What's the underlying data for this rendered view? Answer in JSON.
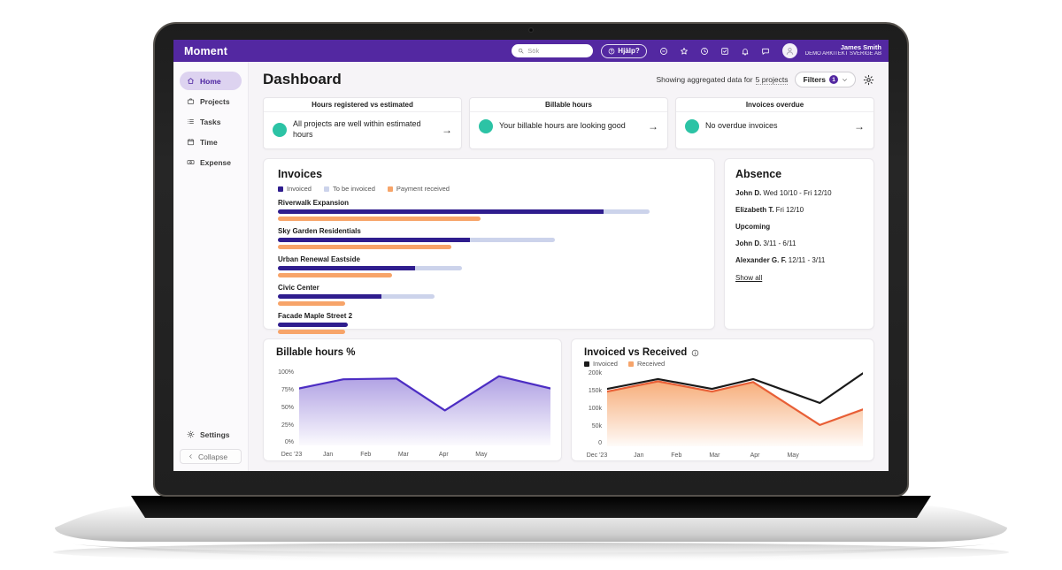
{
  "topbar": {
    "logo": "Moment",
    "search_placeholder": "Sök",
    "help_label": "Hjälp?",
    "icons": [
      "status-icon",
      "star-icon",
      "history-icon",
      "check-square-icon",
      "bell-icon",
      "chat-icon"
    ],
    "user": {
      "name": "James Smith",
      "org": "DEMO ARKITEKT SVERIGE AB"
    }
  },
  "sidebar": {
    "items": [
      {
        "label": "Home",
        "icon": "home-icon",
        "active": true
      },
      {
        "label": "Projects",
        "icon": "briefcase-icon",
        "active": false
      },
      {
        "label": "Tasks",
        "icon": "list-icon",
        "active": false
      },
      {
        "label": "Time",
        "icon": "calendar-icon",
        "active": false
      },
      {
        "label": "Expense",
        "icon": "money-icon",
        "active": false
      }
    ],
    "settings_label": "Settings",
    "collapse_label": "Collapse"
  },
  "header": {
    "title": "Dashboard",
    "aggregate_prefix": "Showing aggregated data for",
    "aggregate_link": "5 projects",
    "filters_label": "Filters",
    "filters_count": "1"
  },
  "summary_cards": [
    {
      "title": "Hours registered vs estimated",
      "message": "All projects are well within estimated hours",
      "status_color": "#2cc3a5"
    },
    {
      "title": "Billable hours",
      "message": "Your billable hours are looking good",
      "status_color": "#2cc3a5"
    },
    {
      "title": "Invoices overdue",
      "message": "No overdue invoices",
      "status_color": "#2cc3a5"
    }
  ],
  "invoices": {
    "title": "Invoices",
    "legend": [
      {
        "label": "Invoiced",
        "color": "#2f1d8e"
      },
      {
        "label": "To be invoiced",
        "color": "#ccd3eb"
      },
      {
        "label": "Payment received",
        "color": "#f7a469"
      }
    ],
    "rows": [
      {
        "project": "Riverwalk Expansion",
        "invoiced_pct": 77.5,
        "to_be_invoiced_pct": 11,
        "payment_received_pct": 48
      },
      {
        "project": "Sky Garden Residentials",
        "invoiced_pct": 46,
        "to_be_invoiced_pct": 20,
        "payment_received_pct": 41
      },
      {
        "project": "Urban Renewal Eastside",
        "invoiced_pct": 33,
        "to_be_invoiced_pct": 11,
        "payment_received_pct": 27
      },
      {
        "project": "Civic Center",
        "invoiced_pct": 25,
        "to_be_invoiced_pct": 12.5,
        "payment_received_pct": 16
      },
      {
        "project": "Facade Maple Street 2",
        "invoiced_pct": 16.5,
        "to_be_invoiced_pct": 0,
        "payment_received_pct": 16
      }
    ]
  },
  "absence": {
    "title": "Absence",
    "current": [
      {
        "name": "John D.",
        "dates": "Wed 10/10 - Fri 12/10"
      },
      {
        "name": "Elizabeth T.",
        "dates": "Fri 12/10"
      }
    ],
    "upcoming_label": "Upcoming",
    "upcoming": [
      {
        "name": "John D.",
        "dates": "3/11 - 6/11"
      },
      {
        "name": "Alexander G. F.",
        "dates": "12/11 - 3/11"
      }
    ],
    "show_all_label": "Show all"
  },
  "chart_data": [
    {
      "type": "area",
      "title": "Billable hours %",
      "x_labels": [
        "Dec '23",
        "Jan",
        "Feb",
        "Mar",
        "Apr",
        "May"
      ],
      "label_frac": [
        -0.03,
        0.115,
        0.265,
        0.415,
        0.575,
        0.725
      ],
      "y_ticks": [
        "100%",
        "75%",
        "50%",
        "25%",
        "0%"
      ],
      "ylim": [
        0,
        100
      ],
      "grid": false,
      "legend": [],
      "series": [
        {
          "name": "Billable hours %",
          "color": "#4c2dc3",
          "fill": "#a695e0",
          "x_frac": [
            0,
            0.176,
            0.387,
            0.58,
            0.795,
            1
          ],
          "values": [
            75,
            87,
            88,
            46,
            91,
            75
          ]
        }
      ]
    },
    {
      "type": "line-area",
      "title": "Invoiced vs Received",
      "x_labels": [
        "Dec '23",
        "Jan",
        "Feb",
        "Mar",
        "Apr",
        "May"
      ],
      "label_frac": [
        -0.04,
        0.124,
        0.271,
        0.42,
        0.578,
        0.727
      ],
      "y_ticks": [
        "200k",
        "150k",
        "100k",
        "50k",
        "0"
      ],
      "ylim": [
        0,
        200
      ],
      "grid": false,
      "legend": [
        {
          "label": "Invoiced",
          "color": "#1a1a1a"
        },
        {
          "label": "Received",
          "color": "#f6a46b"
        }
      ],
      "series": [
        {
          "name": "Received",
          "color": "#e85f36",
          "fill": "#f6a46b",
          "x_frac": [
            0,
            0.199,
            0.41,
            0.571,
            0.832,
            1
          ],
          "values": [
            144,
            171,
            144,
            169,
            56,
            97
          ]
        },
        {
          "name": "Invoiced",
          "color": "#1a1a1a",
          "fill": null,
          "x_frac": [
            0,
            0.199,
            0.41,
            0.571,
            0.832,
            1
          ],
          "values": [
            151,
            177,
            151,
            177,
            114,
            192
          ]
        }
      ]
    }
  ],
  "colors": {
    "brand_purple": "#5328a1",
    "sidebar_active_bg": "#ddd3f0",
    "teal_status": "#2cc3a5",
    "invoiced": "#2f1d8e",
    "to_be_invoiced": "#ccd3eb",
    "payment_received": "#f7a469"
  }
}
